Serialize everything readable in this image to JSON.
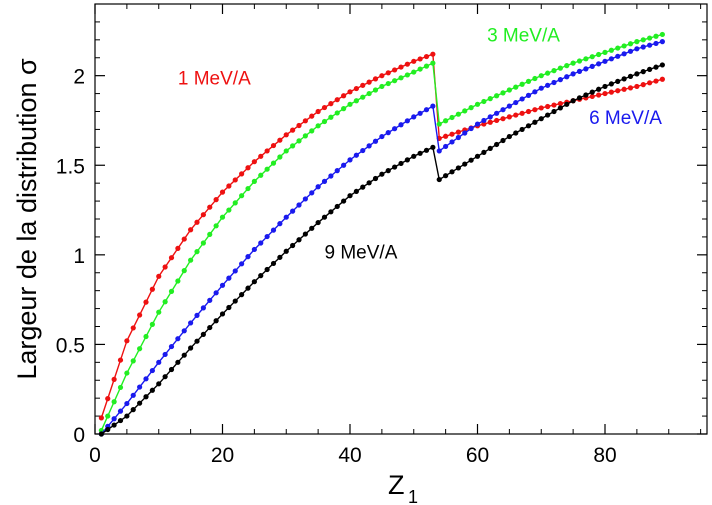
{
  "chart_data": {
    "type": "line",
    "title": "",
    "xlabel": "Z",
    "xlabel_sub": "1",
    "ylabel": "Largeur de la distribution σ",
    "xlim": [
      0,
      96
    ],
    "ylim": [
      0,
      2.4
    ],
    "xticks": [
      0,
      20,
      40,
      60,
      80
    ],
    "yticks": [
      0,
      0.5,
      1,
      1.5,
      2
    ],
    "xtick_labels": [
      "0",
      "20",
      "40",
      "60",
      "80"
    ],
    "ytick_labels": [
      "0",
      "0.5",
      "1",
      "1.5",
      "2"
    ],
    "grid": false,
    "legend": "inline labels",
    "series": [
      {
        "name": "1 MeV/A",
        "color": "#ee1111",
        "points_z": [
          1,
          5,
          10,
          15,
          20,
          25,
          30,
          35,
          40,
          45,
          50,
          53,
          54,
          60,
          65,
          70,
          75,
          80,
          85,
          89
        ],
        "points_sigma": [
          0.09,
          0.52,
          0.88,
          1.14,
          1.35,
          1.52,
          1.67,
          1.8,
          1.91,
          2.0,
          2.08,
          2.12,
          1.65,
          1.72,
          1.77,
          1.82,
          1.86,
          1.9,
          1.94,
          1.98
        ]
      },
      {
        "name": "3 MeV/A",
        "color": "#22ee22",
        "points_z": [
          1,
          5,
          10,
          15,
          20,
          25,
          30,
          35,
          40,
          45,
          50,
          53,
          54,
          60,
          65,
          70,
          75,
          80,
          85,
          89
        ],
        "points_sigma": [
          0.02,
          0.34,
          0.68,
          0.97,
          1.21,
          1.41,
          1.58,
          1.72,
          1.84,
          1.94,
          2.02,
          2.07,
          1.73,
          1.84,
          1.92,
          2.0,
          2.07,
          2.13,
          2.19,
          2.23
        ]
      },
      {
        "name": "6 MeV/A",
        "color": "#1a1aee",
        "points_z": [
          1,
          5,
          10,
          15,
          20,
          25,
          30,
          35,
          40,
          45,
          50,
          53,
          54,
          60,
          65,
          70,
          75,
          80,
          85,
          89
        ],
        "points_sigma": [
          0.0,
          0.17,
          0.4,
          0.62,
          0.83,
          1.03,
          1.21,
          1.38,
          1.53,
          1.66,
          1.77,
          1.83,
          1.58,
          1.73,
          1.83,
          1.93,
          2.01,
          2.08,
          2.15,
          2.19
        ]
      },
      {
        "name": "9 MeV/A",
        "color": "#000000",
        "points_z": [
          1,
          5,
          10,
          15,
          20,
          25,
          30,
          35,
          40,
          45,
          50,
          53,
          54,
          60,
          65,
          70,
          75,
          80,
          85,
          89
        ],
        "points_sigma": [
          0.0,
          0.1,
          0.28,
          0.48,
          0.67,
          0.85,
          1.02,
          1.18,
          1.33,
          1.45,
          1.55,
          1.6,
          1.42,
          1.55,
          1.66,
          1.76,
          1.86,
          1.94,
          2.01,
          2.06
        ]
      }
    ],
    "annotations": [
      {
        "text": "1 MeV/A",
        "color": "#ee1111",
        "x": 13,
        "y": 1.95
      },
      {
        "text": "3 MeV/A",
        "color": "#22ee22",
        "x": 61.5,
        "y": 2.19
      },
      {
        "text": "6 MeV/A",
        "color": "#1a1aee",
        "x": 77.5,
        "y": 1.73
      },
      {
        "text": "9 MeV/A",
        "color": "#000000",
        "x": 36,
        "y": 0.98
      }
    ]
  }
}
